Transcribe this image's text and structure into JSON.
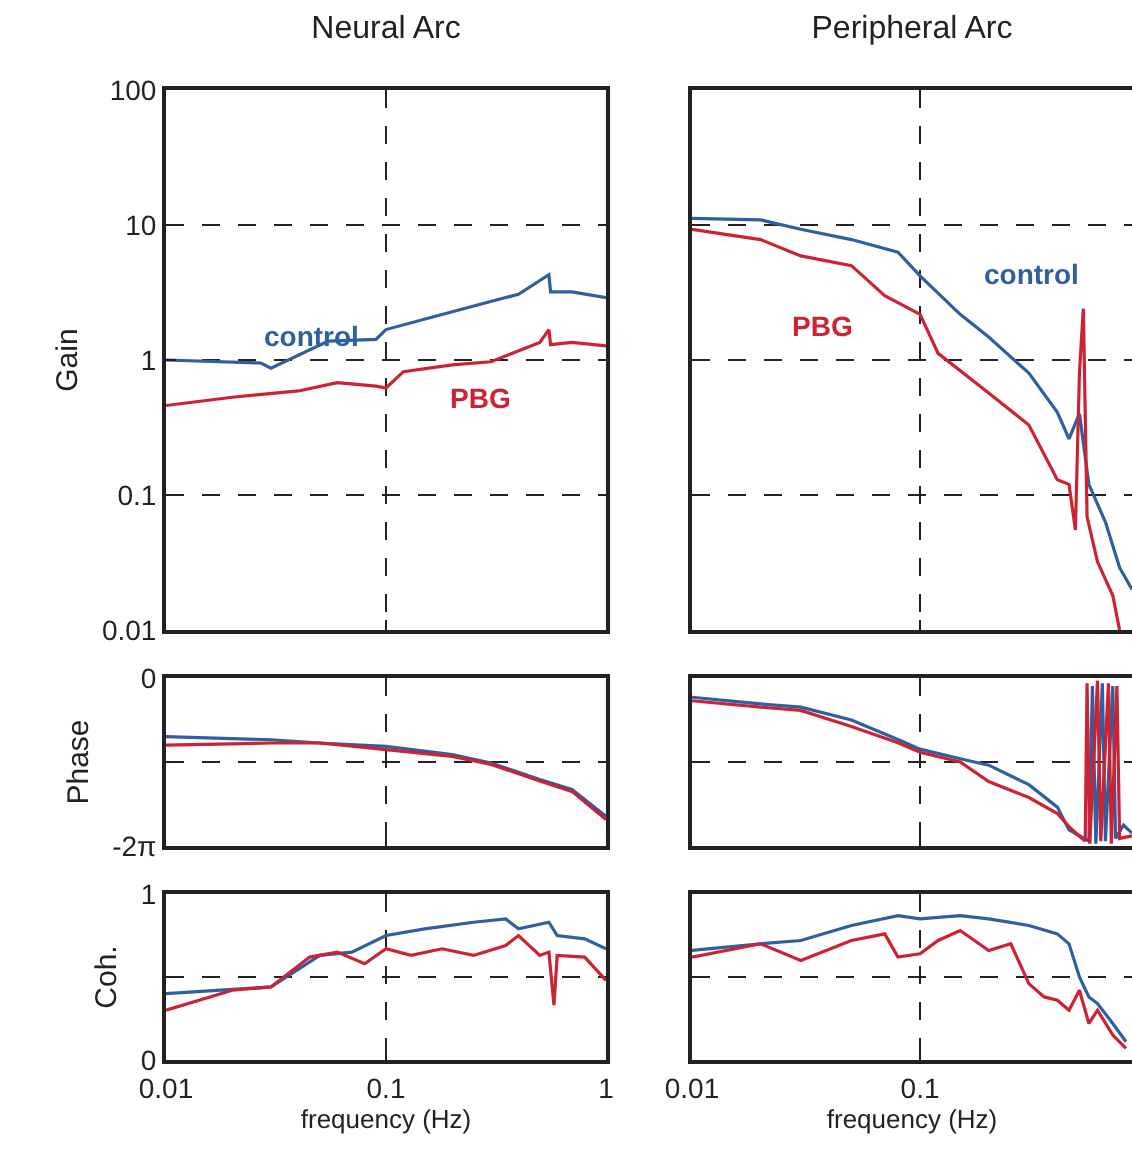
{
  "chart_data": [
    {
      "type": "line",
      "title": "Neural Arc",
      "ylabel": "Gain",
      "log": "xy",
      "grid": true,
      "tick_labels": "y",
      "xlim": [
        0.01,
        1
      ],
      "xticks": [
        0.01,
        0.1,
        1
      ],
      "ylim": [
        0.01,
        100
      ],
      "yticks": [
        0.01,
        0.1,
        1,
        10,
        100
      ],
      "series": [
        {
          "name": "control",
          "color": "#2e5fa0",
          "x": [
            0.01,
            0.027,
            0.03,
            0.0546,
            0.09,
            0.1,
            0.2,
            0.4,
            0.55,
            0.56,
            0.7,
            1
          ],
          "values": [
            1.0,
            0.95,
            0.87,
            1.38,
            1.42,
            1.68,
            2.28,
            3.07,
            4.28,
            3.2,
            3.2,
            2.9
          ]
        },
        {
          "name": "PBG",
          "color": "#cc2233",
          "x": [
            0.01,
            0.02,
            0.04,
            0.06,
            0.09,
            0.1,
            0.12,
            0.2,
            0.3,
            0.5,
            0.55,
            0.56,
            0.7,
            1
          ],
          "values": [
            0.46,
            0.53,
            0.59,
            0.68,
            0.64,
            0.62,
            0.82,
            0.92,
            0.97,
            1.35,
            1.68,
            1.3,
            1.35,
            1.27
          ]
        }
      ]
    },
    {
      "type": "line",
      "title": "Peripheral Arc",
      "log": "xy",
      "grid": true,
      "tick_labels": false,
      "xlim": [
        0.01,
        0.85
      ],
      "xticks": [
        0.01,
        0.1
      ],
      "ylim": [
        0.01,
        100
      ],
      "yticks": [
        0.01,
        0.1,
        1,
        10,
        100
      ],
      "series": [
        {
          "name": "control",
          "color": "#2e5fa0",
          "x": [
            0.01,
            0.02,
            0.03,
            0.05,
            0.08,
            0.1,
            0.15,
            0.2,
            0.3,
            0.4,
            0.45,
            0.5,
            0.55,
            0.65,
            0.75,
            0.85
          ],
          "values": [
            11.2,
            10.9,
            9.3,
            7.8,
            6.3,
            4.2,
            2.18,
            1.48,
            0.8,
            0.41,
            0.26,
            0.4,
            0.12,
            0.063,
            0.029,
            0.02
          ]
        },
        {
          "name": "PBG",
          "color": "#cc2233",
          "x": [
            0.01,
            0.02,
            0.03,
            0.05,
            0.07,
            0.1,
            0.12,
            0.2,
            0.3,
            0.4,
            0.45,
            0.48,
            0.5,
            0.52,
            0.54,
            0.6,
            0.7,
            0.75
          ],
          "values": [
            9.3,
            7.8,
            5.9,
            5.0,
            3.0,
            2.18,
            1.12,
            0.57,
            0.33,
            0.13,
            0.12,
            0.055,
            0.8,
            2.4,
            0.069,
            0.032,
            0.018,
            0.01
          ]
        }
      ]
    },
    {
      "type": "line",
      "ylabel": "Phase",
      "log": "x",
      "grid": true,
      "tick_labels": "y",
      "xlim": [
        0.01,
        1
      ],
      "xticks": [
        0.01,
        0.1,
        1
      ],
      "ylim": [
        -6.2832,
        0
      ],
      "yticks": [
        0,
        {
          "value": -3.1416,
          "label": null
        },
        {
          "value": -6.2832,
          "label": "-2π"
        }
      ],
      "series": [
        {
          "color": "#2e5fa0",
          "x": [
            0.01,
            0.03,
            0.05,
            0.1,
            0.2,
            0.3,
            0.5,
            0.7,
            1
          ],
          "values": [
            -2.19,
            -2.31,
            -2.43,
            -2.56,
            -2.86,
            -3.18,
            -3.8,
            -4.17,
            -5.17
          ]
        },
        {
          "color": "#cc2233",
          "x": [
            0.01,
            0.03,
            0.05,
            0.1,
            0.2,
            0.3,
            0.5,
            0.7,
            1
          ],
          "values": [
            -2.51,
            -2.43,
            -2.43,
            -2.68,
            -2.93,
            -3.23,
            -3.85,
            -4.24,
            -5.29
          ]
        }
      ]
    },
    {
      "type": "line",
      "log": "x",
      "grid": true,
      "tick_labels": false,
      "xlim": [
        0.01,
        0.85
      ],
      "xticks": [
        0.01,
        0.1
      ],
      "ylim": [
        -6.2832,
        0
      ],
      "yticks": [
        0,
        {
          "value": -3.1416,
          "label": null
        },
        {
          "value": -6.2832,
          "label": null
        }
      ],
      "series": [
        {
          "color": "#2e5fa0",
          "x": [
            0.01,
            0.02,
            0.03,
            0.05,
            0.08,
            0.1,
            0.15,
            0.2,
            0.3,
            0.4,
            0.45,
            0.5,
            0.55,
            0.57,
            0.59,
            0.63,
            0.65,
            0.7,
            0.72,
            0.78,
            0.85
          ],
          "values": [
            -0.72,
            -0.97,
            -1.09,
            -1.57,
            -2.3,
            -2.66,
            -3.02,
            -3.26,
            -3.99,
            -4.83,
            -5.68,
            -5.9,
            -6.1,
            -0.3,
            -6.2,
            -0.2,
            -6.1,
            -0.3,
            -6.0,
            -5.5,
            -5.8
          ]
        },
        {
          "color": "#cc2233",
          "x": [
            0.01,
            0.02,
            0.03,
            0.05,
            0.08,
            0.1,
            0.15,
            0.2,
            0.3,
            0.4,
            0.45,
            0.5,
            0.53,
            0.54,
            0.555,
            0.6,
            0.62,
            0.67,
            0.69,
            0.73,
            0.75,
            0.85
          ],
          "values": [
            -0.85,
            -1.09,
            -1.21,
            -1.81,
            -2.42,
            -2.78,
            -3.14,
            -3.87,
            -4.47,
            -5.07,
            -5.56,
            -5.92,
            -6.1,
            -0.2,
            -6.2,
            -0.1,
            -6.1,
            -0.2,
            -6.2,
            -0.3,
            -6.0,
            -5.9
          ]
        }
      ]
    },
    {
      "type": "line",
      "ylabel": "Coh.",
      "xlabel": "frequency (Hz)",
      "log": "x",
      "grid": true,
      "xlim": [
        0.01,
        1
      ],
      "xticks": [
        0.01,
        0.1,
        1
      ],
      "ylim": [
        0,
        1
      ],
      "yticks": [
        0,
        {
          "value": 0.5,
          "label": null
        },
        1
      ],
      "series": [
        {
          "color": "#2e5fa0",
          "x": [
            0.01,
            0.03,
            0.05,
            0.07,
            0.1,
            0.15,
            0.25,
            0.35,
            0.4,
            0.55,
            0.6,
            0.8,
            1
          ],
          "values": [
            0.4,
            0.44,
            0.63,
            0.65,
            0.75,
            0.79,
            0.83,
            0.85,
            0.79,
            0.83,
            0.75,
            0.73,
            0.67
          ]
        },
        {
          "color": "#cc2233",
          "x": [
            0.01,
            0.02,
            0.03,
            0.045,
            0.06,
            0.08,
            0.1,
            0.13,
            0.18,
            0.25,
            0.35,
            0.4,
            0.5,
            0.55,
            0.58,
            0.6,
            0.8,
            1
          ],
          "values": [
            0.3,
            0.42,
            0.44,
            0.62,
            0.65,
            0.58,
            0.67,
            0.63,
            0.67,
            0.63,
            0.69,
            0.75,
            0.63,
            0.65,
            0.33,
            0.63,
            0.62,
            0.48
          ]
        }
      ]
    },
    {
      "type": "line",
      "xlabel": "frequency (Hz)",
      "log": "x",
      "grid": true,
      "tick_labels": "x",
      "xlim": [
        0.01,
        0.85
      ],
      "xticks": [
        0.01,
        0.1
      ],
      "ylim": [
        0,
        1
      ],
      "yticks": [
        0,
        {
          "value": 0.5,
          "label": null
        },
        1
      ],
      "series": [
        {
          "color": "#2e5fa0",
          "x": [
            0.01,
            0.02,
            0.03,
            0.05,
            0.08,
            0.1,
            0.15,
            0.2,
            0.3,
            0.4,
            0.45,
            0.5,
            0.55,
            0.6,
            0.7,
            0.8
          ],
          "values": [
            0.66,
            0.7,
            0.72,
            0.81,
            0.87,
            0.85,
            0.87,
            0.85,
            0.81,
            0.76,
            0.7,
            0.5,
            0.38,
            0.34,
            0.22,
            0.11
          ]
        },
        {
          "color": "#cc2233",
          "x": [
            0.01,
            0.02,
            0.03,
            0.05,
            0.07,
            0.08,
            0.1,
            0.12,
            0.15,
            0.2,
            0.25,
            0.3,
            0.35,
            0.4,
            0.45,
            0.5,
            0.55,
            0.6,
            0.7,
            0.8
          ],
          "values": [
            0.62,
            0.7,
            0.6,
            0.72,
            0.76,
            0.62,
            0.64,
            0.72,
            0.78,
            0.66,
            0.7,
            0.46,
            0.38,
            0.36,
            0.3,
            0.42,
            0.22,
            0.3,
            0.15,
            0.07
          ]
        }
      ]
    }
  ]
}
